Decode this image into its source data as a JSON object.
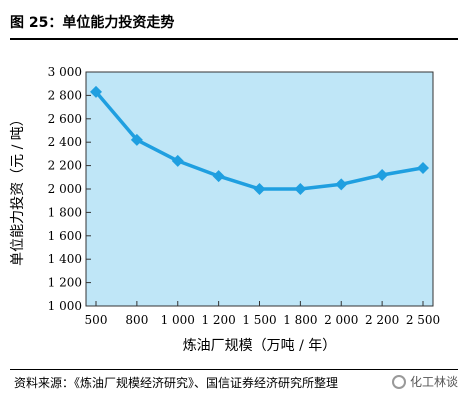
{
  "figure": {
    "title": "图 25：单位能力投资走势",
    "source": "资料来源：《炼油厂规模经济研究》、国信证券经济研究所整理",
    "watermark": "化工林谈"
  },
  "colors": {
    "plot_bg": "#bfe6f7",
    "line": "#1f9fe0",
    "marker": "#1f9fe0"
  },
  "chart_data": {
    "type": "line",
    "categories": [
      "500",
      "800",
      "1 000",
      "1 200",
      "1 500",
      "1 800",
      "2 000",
      "2 200",
      "2 500"
    ],
    "series": [
      {
        "values": [
          2830,
          2420,
          2240,
          2110,
          2000,
          2000,
          2040,
          2120,
          2180
        ]
      }
    ],
    "xlabel": "炼油厂规模（万吨 / 年）",
    "ylabel": "单位能力投资（元 / 吨）",
    "ylim": [
      1000,
      3000
    ],
    "yticks": [
      1000,
      1200,
      1400,
      1600,
      1800,
      2000,
      2200,
      2400,
      2600,
      2800,
      3000
    ],
    "ytick_labels": [
      "1 000",
      "1 200",
      "1 400",
      "1 600",
      "1 800",
      "2 000",
      "2 200",
      "2 400",
      "2 600",
      "2 800",
      "3 000"
    ],
    "grid": false,
    "legend": "none"
  }
}
